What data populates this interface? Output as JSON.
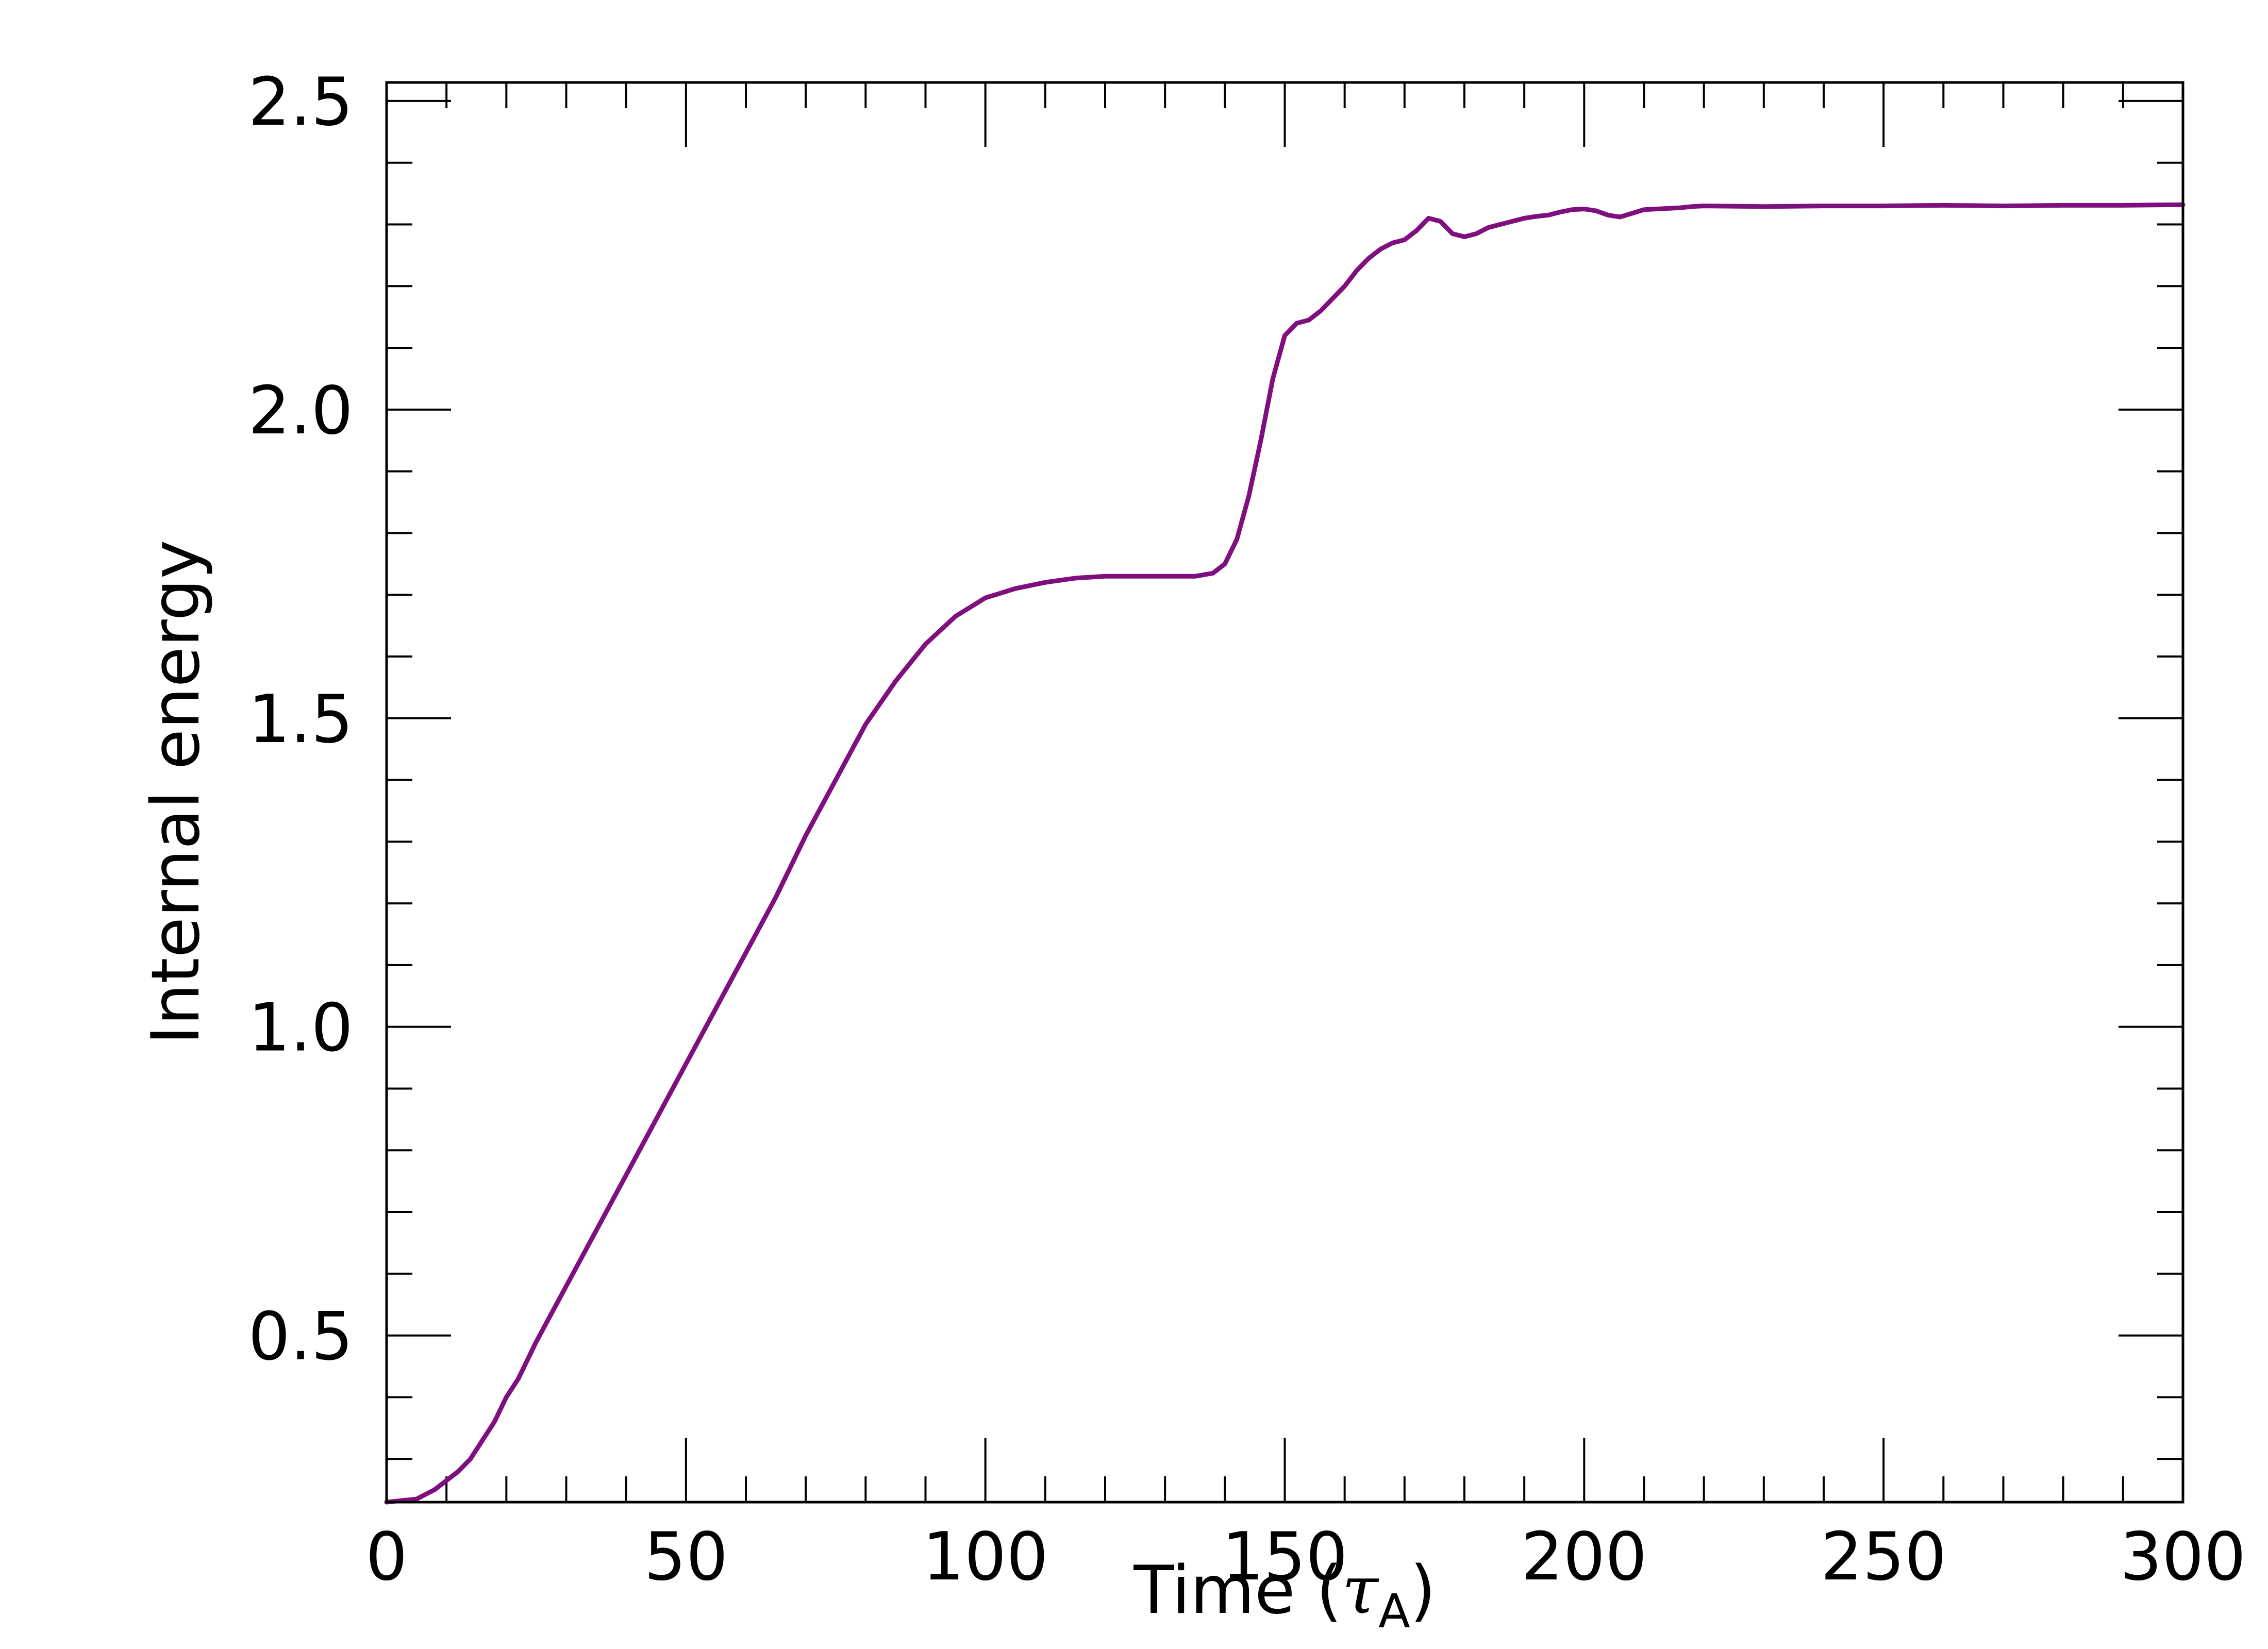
{
  "chart_data": {
    "type": "line",
    "title": "",
    "xlabel_main": "Time (",
    "xlabel_symbol": "τ",
    "xlabel_subscript": "A",
    "xlabel_close": ")",
    "ylabel": "Internal energy",
    "xlim": [
      0,
      300
    ],
    "ylim": [
      0.23,
      2.53
    ],
    "x_ticks": [
      {
        "value": 0,
        "label": "0"
      },
      {
        "value": 50,
        "label": "50"
      },
      {
        "value": 100,
        "label": "100"
      },
      {
        "value": 150,
        "label": "150"
      },
      {
        "value": 200,
        "label": "200"
      },
      {
        "value": 250,
        "label": "250"
      },
      {
        "value": 300,
        "label": "300"
      }
    ],
    "y_ticks": [
      {
        "value": 0.5,
        "label": "0.5"
      },
      {
        "value": 1.0,
        "label": "1.0"
      },
      {
        "value": 1.5,
        "label": "1.5"
      },
      {
        "value": 2.0,
        "label": "2.0"
      },
      {
        "value": 2.5,
        "label": "2.5"
      }
    ],
    "x_minor_step": 10,
    "y_minor_step": 0.1,
    "grid": false,
    "line_color": "#7f0f7f",
    "series": [
      {
        "x": [
          0,
          5,
          8,
          10,
          12,
          14,
          16,
          18,
          20,
          22,
          25,
          30,
          35,
          40,
          45,
          50,
          55,
          60,
          65,
          70,
          75,
          80,
          85,
          90,
          95,
          100,
          105,
          110,
          115,
          120,
          125,
          130,
          135,
          138,
          140,
          142,
          144,
          146,
          148,
          150,
          152,
          154,
          156,
          158,
          160,
          162,
          164,
          166,
          168,
          170,
          172,
          174,
          176,
          178,
          180,
          182,
          184,
          186,
          188,
          190,
          192,
          194,
          196,
          198,
          200,
          202,
          204,
          206,
          208,
          210,
          212,
          214,
          216,
          218,
          220,
          230,
          240,
          250,
          260,
          270,
          280,
          290,
          300
        ],
        "y": [
          0.23,
          0.235,
          0.25,
          0.265,
          0.28,
          0.3,
          0.33,
          0.36,
          0.4,
          0.43,
          0.49,
          0.58,
          0.67,
          0.76,
          0.85,
          0.94,
          1.03,
          1.12,
          1.21,
          1.31,
          1.4,
          1.49,
          1.56,
          1.62,
          1.665,
          1.695,
          1.71,
          1.72,
          1.727,
          1.73,
          1.73,
          1.73,
          1.73,
          1.735,
          1.75,
          1.79,
          1.86,
          1.95,
          2.05,
          2.12,
          2.14,
          2.145,
          2.16,
          2.18,
          2.2,
          2.225,
          2.245,
          2.26,
          2.27,
          2.275,
          2.29,
          2.31,
          2.305,
          2.285,
          2.28,
          2.285,
          2.295,
          2.3,
          2.305,
          2.31,
          2.313,
          2.315,
          2.32,
          2.324,
          2.325,
          2.322,
          2.315,
          2.312,
          2.318,
          2.324,
          2.325,
          2.326,
          2.327,
          2.329,
          2.33,
          2.329,
          2.33,
          2.33,
          2.331,
          2.33,
          2.331,
          2.331,
          2.332
        ]
      }
    ]
  }
}
